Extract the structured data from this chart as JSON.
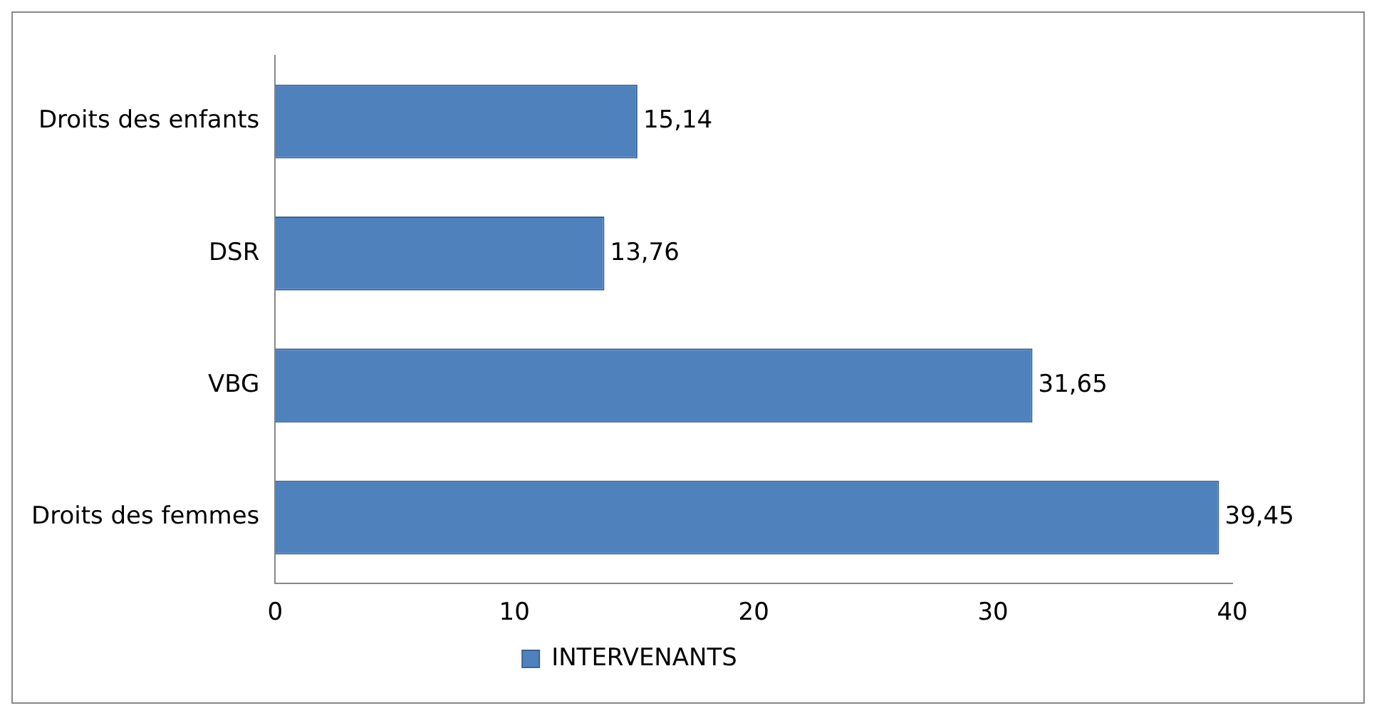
{
  "chart_data": {
    "type": "bar",
    "orientation": "horizontal",
    "categories": [
      "Droits des enfants",
      "DSR",
      "VBG",
      "Droits des femmes"
    ],
    "series": [
      {
        "name": "INTERVENANTS",
        "color": "#4f81bd",
        "values": [
          15.14,
          13.76,
          31.65,
          39.45
        ],
        "value_labels": [
          "15,14",
          "13,76",
          "31,65",
          "39,45"
        ]
      }
    ],
    "xlim": [
      0,
      40
    ],
    "xticks": [
      0,
      10,
      20,
      30,
      40
    ],
    "grid": false,
    "legend": "bottom"
  }
}
